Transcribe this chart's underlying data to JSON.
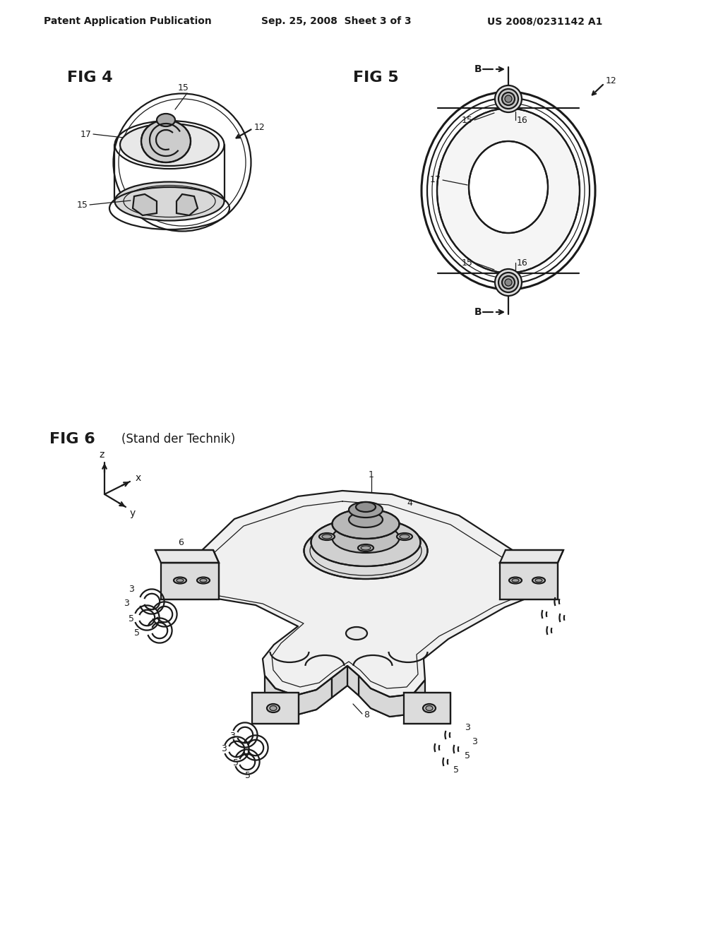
{
  "background_color": "#ffffff",
  "header_left": "Patent Application Publication",
  "header_center": "Sep. 25, 2008  Sheet 3 of 3",
  "header_right": "US 2008/0231142 A1",
  "line_color": "#1a1a1a",
  "line_width": 1.6,
  "thin_line": 0.9,
  "thick_line": 2.2
}
